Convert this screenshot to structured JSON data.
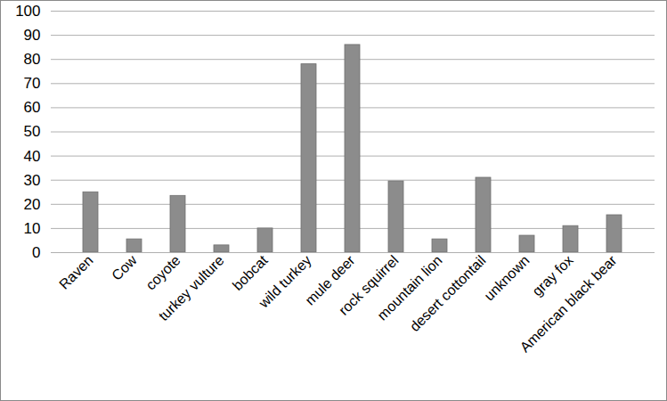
{
  "chart_data": {
    "type": "bar",
    "categories": [
      "Raven",
      "Cow",
      "coyote",
      "turkey vulture",
      "bobcat",
      "wild turkey",
      "mule deer",
      "rock squirrel",
      "mountain lion",
      "desert cottontail",
      "unknown",
      "gray fox",
      "American black bear"
    ],
    "values": [
      25,
      5.5,
      23.5,
      3,
      10,
      78,
      86,
      29.5,
      5.5,
      31,
      7,
      11,
      15.5
    ],
    "color": "#8c8c8c",
    "ylim": [
      0,
      100
    ],
    "yticks": [
      0,
      10,
      20,
      30,
      40,
      50,
      60,
      70,
      80,
      90,
      100
    ],
    "grid": true
  }
}
